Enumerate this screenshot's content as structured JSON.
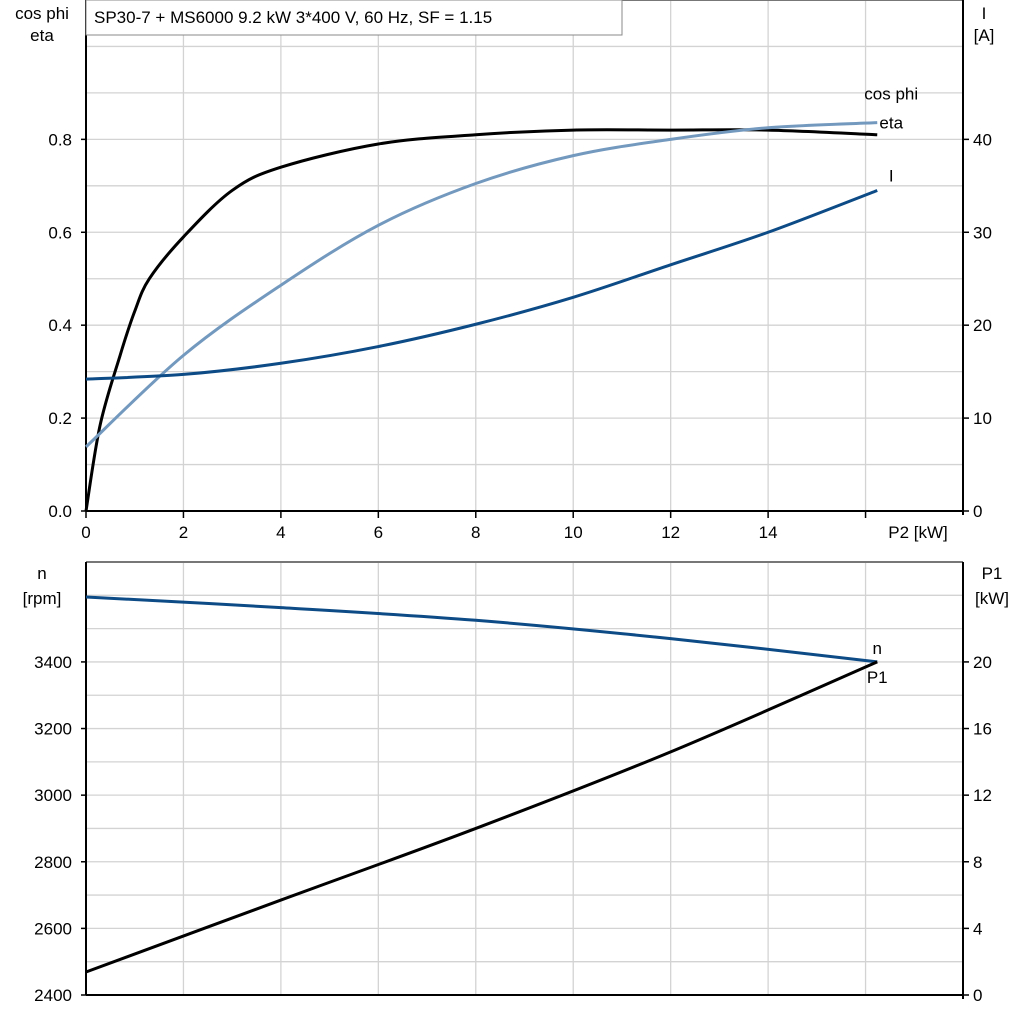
{
  "chart_data": [
    {
      "type": "line",
      "title": "SP30-7 + MS6000   9.2 kW   3*400 V, 60 Hz, SF = 1.15",
      "xlabel": "P2 [kW]",
      "ylabel_left": [
        "cos phi",
        "eta"
      ],
      "ylabel_right": [
        "I",
        "[A]"
      ],
      "xlim": [
        0,
        18
      ],
      "ylim_left": [
        0,
        1.1
      ],
      "ylim_right": [
        0,
        55
      ],
      "x_ticks": [
        "0",
        "2",
        "4",
        "6",
        "8",
        "10",
        "12",
        "14"
      ],
      "y_left_ticks": [
        "0.0",
        "0.2",
        "0.4",
        "0.6",
        "0.8"
      ],
      "y_right_ticks": [
        "0",
        "10",
        "20",
        "30",
        "40"
      ],
      "grid": true,
      "series": [
        {
          "name": "eta",
          "axis": "left",
          "color": "#000000",
          "x": [
            0,
            0.29,
            0.7,
            1.0,
            1.3,
            2,
            3,
            4,
            6,
            8,
            10,
            12,
            14,
            16.24
          ],
          "y": [
            0,
            0.185,
            0.335,
            0.43,
            0.5,
            0.59,
            0.69,
            0.74,
            0.79,
            0.81,
            0.82,
            0.82,
            0.82,
            0.81
          ]
        },
        {
          "name": "cos phi",
          "axis": "left",
          "color": "#7399bf",
          "x": [
            0,
            2,
            4,
            6,
            8,
            10,
            12,
            14,
            16.24
          ],
          "y": [
            0.138,
            0.335,
            0.486,
            0.615,
            0.705,
            0.765,
            0.8,
            0.825,
            0.836
          ]
        },
        {
          "name": "I",
          "axis": "right",
          "color": "#0d4b86",
          "x": [
            0,
            2,
            4,
            6,
            8,
            10,
            12,
            14,
            16.24
          ],
          "y": [
            14.2,
            14.7,
            15.9,
            17.7,
            20.1,
            23,
            26.5,
            30,
            34.5
          ]
        }
      ]
    },
    {
      "type": "line",
      "ylabel_left": [
        "n",
        "[rpm]"
      ],
      "ylabel_right": [
        "P1",
        "[kW]"
      ],
      "xlim": [
        0,
        18
      ],
      "ylim_left": [
        2400,
        3700
      ],
      "ylim_right": [
        0,
        26
      ],
      "y_left_ticks": [
        "2400",
        "2600",
        "2800",
        "3000",
        "3200",
        "3400"
      ],
      "y_right_ticks": [
        "0",
        "4",
        "8",
        "12",
        "16",
        "20"
      ],
      "grid": true,
      "series": [
        {
          "name": "n",
          "axis": "left",
          "color": "#0d4b86",
          "x": [
            0,
            4,
            8,
            12,
            16.24
          ],
          "y": [
            3595,
            3563,
            3525,
            3470,
            3400
          ]
        },
        {
          "name": "P1",
          "axis": "right",
          "color": "#000000",
          "x": [
            0,
            4,
            8,
            12,
            16.24
          ],
          "y": [
            1.38,
            5.7,
            10.0,
            14.6,
            20
          ]
        }
      ]
    }
  ]
}
